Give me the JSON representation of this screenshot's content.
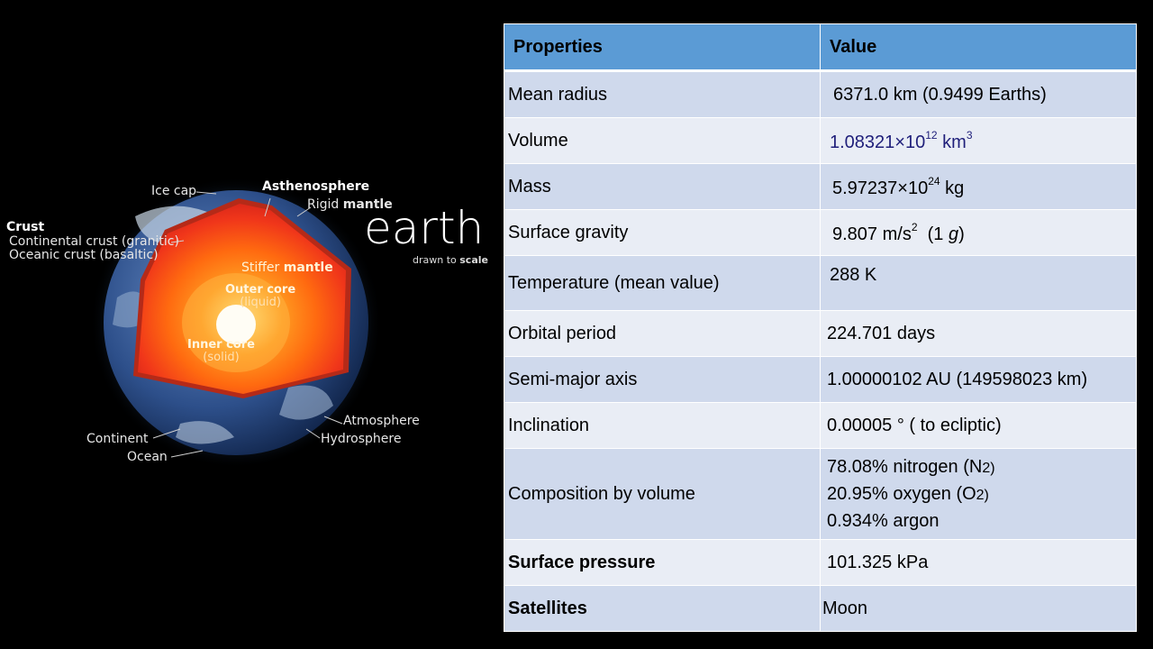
{
  "figure": {
    "title": "earth",
    "subtitle_plain": "drawn to ",
    "subtitle_bold": "scale",
    "labels": {
      "crust": "Crust",
      "continental_crust": "Continental crust (granitic)",
      "oceanic_crust": "Oceanic crust (basaltic)",
      "ice_cap": "Ice cap",
      "asthenosphere": "Asthenosphere",
      "rigid": "Rigid ",
      "rigid_bold": "mantle",
      "stiffer": "Stiffer ",
      "stiffer_bold": "mantle",
      "outer_core": "Outer core",
      "outer_core_state": "(liquid)",
      "inner_core": "Inner core",
      "inner_core_state": "(solid)",
      "atmosphere": "Atmosphere",
      "hydrosphere": "Hydrosphere",
      "continent": "Continent",
      "ocean": "Ocean"
    }
  },
  "table": {
    "headers": [
      "Properties",
      "Value"
    ],
    "rows": {
      "radius": {
        "label": "Mean radius",
        "value": "6371.0 km (0.9499 Earths)"
      },
      "volume": {
        "label": "Volume",
        "mantissa": "1.08321×10",
        "exp": "12",
        "unit": "km",
        "unit_exp": "3"
      },
      "mass": {
        "label": "Mass",
        "mantissa": "5.97237×10",
        "exp": "24",
        "unit": "kg"
      },
      "gravity": {
        "label": "Surface gravity",
        "value": "9.807 m/s",
        "exp": "2",
        "open": "(1 ",
        "g": "g",
        "close": ")"
      },
      "temp": {
        "label": "Temperature (mean value)",
        "value": "288 K"
      },
      "orbit": {
        "label": "Orbital period",
        "value": "224.701 days"
      },
      "axis": {
        "label": "Semi-major axis",
        "value": "1.00000102 AU (149598023 km)"
      },
      "incl": {
        "label": "Inclination",
        "value": "0.00005 ° ( to ecliptic)"
      },
      "comp": {
        "label": "Composition by volume",
        "line1_a": "78.08% nitrogen (N",
        "line1_b": "2)",
        "line2_a": "20.95% oxygen (O",
        "line2_b": "2)",
        "line3": "0.934% argon"
      },
      "pressure": {
        "label": "Surface pressure",
        "value": "101.325 kPa"
      },
      "satellites": {
        "label": "Satellites",
        "value": "Moon"
      }
    }
  },
  "colors": {
    "header": "#5b9bd5",
    "row_odd": "#cfd9ec",
    "row_even": "#e9edf5",
    "background": "#000000"
  }
}
